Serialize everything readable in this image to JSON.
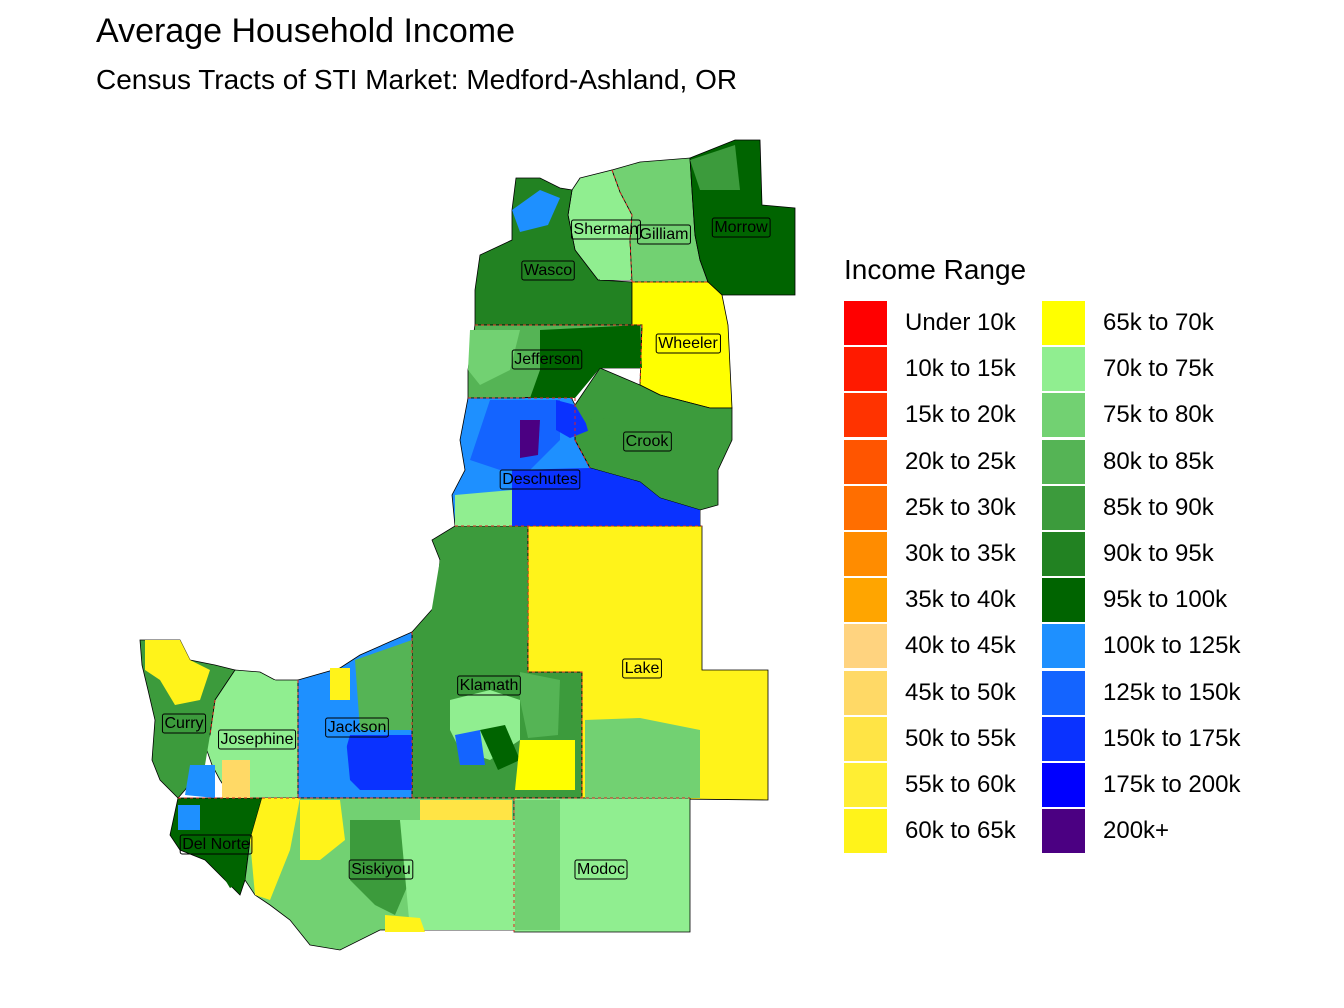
{
  "title": "Average Household Income",
  "subtitle": "Census Tracts of STI Market: Medford-Ashland, OR",
  "legend": {
    "title": "Income Range",
    "items": [
      {
        "label": "Under 10k",
        "color": "#FF0000"
      },
      {
        "label": "10k to 15k",
        "color": "#FF1A00"
      },
      {
        "label": "15k to 20k",
        "color": "#FF3300"
      },
      {
        "label": "20k to 25k",
        "color": "#FF5500"
      },
      {
        "label": "25k to 30k",
        "color": "#FF6E00"
      },
      {
        "label": "30k to 35k",
        "color": "#FF8C00"
      },
      {
        "label": "35k to 40k",
        "color": "#FFA500"
      },
      {
        "label": "40k to 45k",
        "color": "#FFD37F"
      },
      {
        "label": "45k to 50k",
        "color": "#FFD966"
      },
      {
        "label": "50k to 55k",
        "color": "#FFE445"
      },
      {
        "label": "55k to 60k",
        "color": "#FFEE33"
      },
      {
        "label": "60k to 65k",
        "color": "#FFF31A"
      },
      {
        "label": "65k to 70k",
        "color": "#FFFF00"
      },
      {
        "label": "70k to 75k",
        "color": "#90EE90"
      },
      {
        "label": "75k to 80k",
        "color": "#72D172"
      },
      {
        "label": "80k to 85k",
        "color": "#55B455"
      },
      {
        "label": "85k to 90k",
        "color": "#3C9B3C"
      },
      {
        "label": "90k to 95k",
        "color": "#228222"
      },
      {
        "label": "95k to 100k",
        "color": "#006400"
      },
      {
        "label": "100k to 125k",
        "color": "#1E90FF"
      },
      {
        "label": "125k to 150k",
        "color": "#1464FF"
      },
      {
        "label": "150k to 175k",
        "color": "#0A32FF"
      },
      {
        "label": "175k to 200k",
        "color": "#0000FF"
      },
      {
        "label": "200k+",
        "color": "#4B0082"
      }
    ]
  },
  "counties": [
    {
      "name": "Sherman",
      "fill": "#90EE90"
    },
    {
      "name": "Gilliam",
      "fill": "#72D172"
    },
    {
      "name": "Morrow",
      "fill": "#006400"
    },
    {
      "name": "Wasco",
      "fill": "#228222"
    },
    {
      "name": "Wheeler",
      "fill": "#FFFF00"
    },
    {
      "name": "Jefferson",
      "fill": "#55B455"
    },
    {
      "name": "Crook",
      "fill": "#3C9B3C"
    },
    {
      "name": "Deschutes",
      "fill": "#1E90FF"
    },
    {
      "name": "Klamath",
      "fill": "#3C9B3C"
    },
    {
      "name": "Lake",
      "fill": "#FFF31A"
    },
    {
      "name": "Curry",
      "fill": "#3C9B3C"
    },
    {
      "name": "Josephine",
      "fill": "#90EE90"
    },
    {
      "name": "Jackson",
      "fill": "#1E90FF"
    },
    {
      "name": "Del Norte",
      "fill": "#006400"
    },
    {
      "name": "Siskiyou",
      "fill": "#72D172"
    },
    {
      "name": "Modoc",
      "fill": "#90EE90"
    }
  ]
}
